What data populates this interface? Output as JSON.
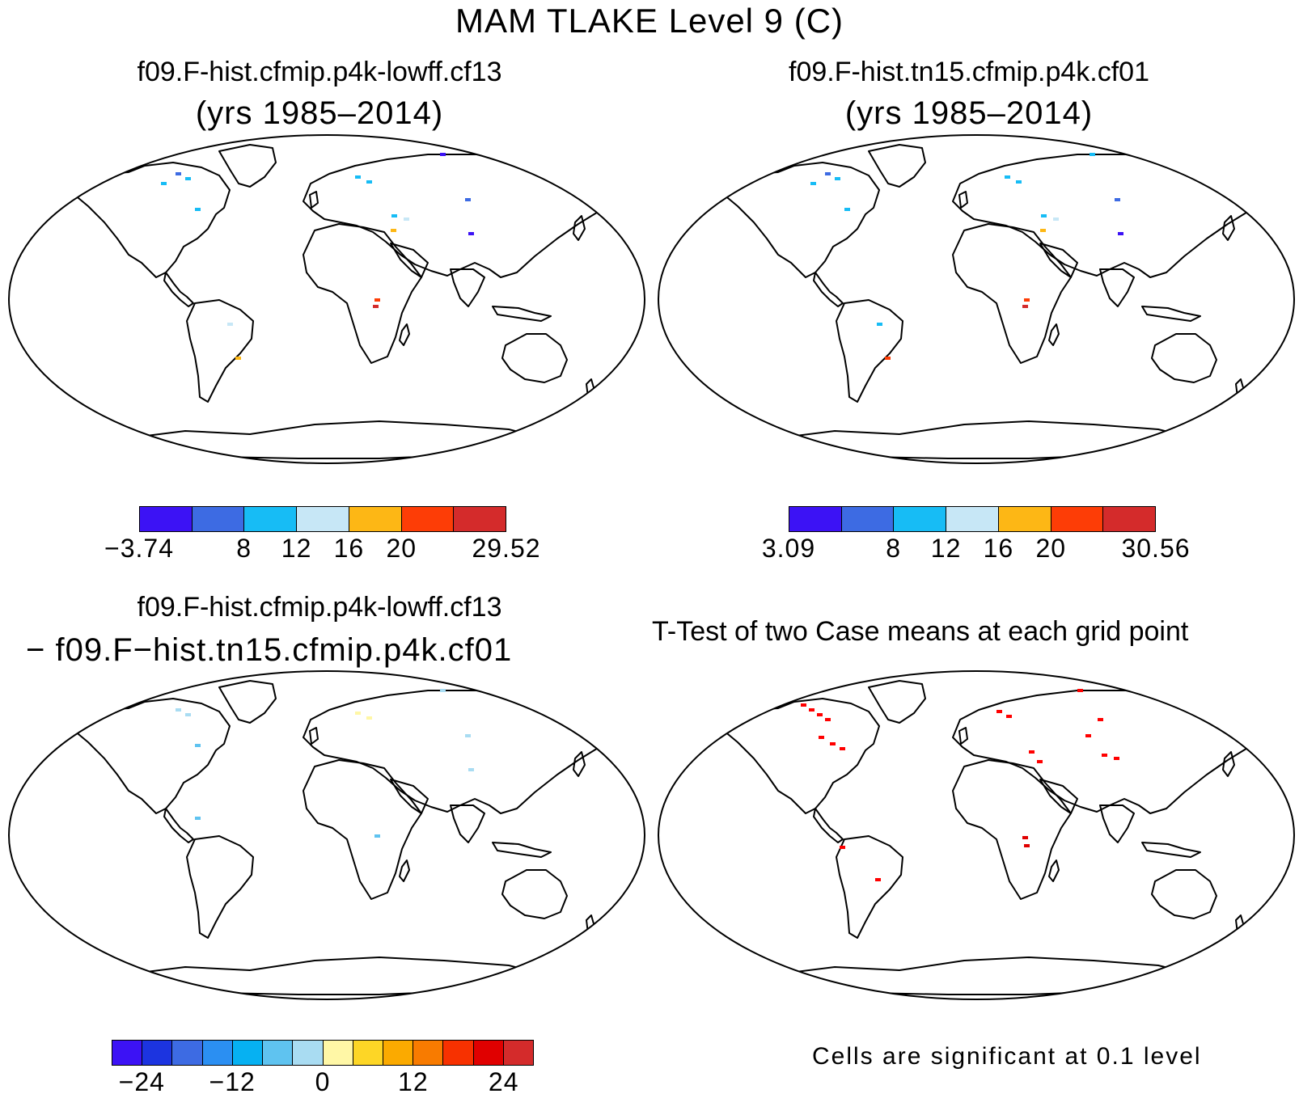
{
  "title": "MAM TLAKE Level 9 (C)",
  "panels": [
    {
      "id": "case1",
      "title": "f09.F-hist.cfmip.p4k-lowff.cf13",
      "subtitle": "(yrs 1985–2014)",
      "colorbar": {
        "colors": [
          "#3c12f5",
          "#3d6be3",
          "#17bcf5",
          "#c7e7f6",
          "#fdb715",
          "#fd3d06",
          "#d42b2b"
        ],
        "ticks": [
          "−3.74",
          "8",
          "12",
          "16",
          "20",
          "29.52"
        ]
      }
    },
    {
      "id": "case2",
      "title": "f09.F-hist.tn15.cfmip.p4k.cf01",
      "subtitle": "(yrs 1985–2014)",
      "colorbar": {
        "colors": [
          "#3c12f5",
          "#3d6be3",
          "#17bcf5",
          "#c7e7f6",
          "#fdb715",
          "#fd3d06",
          "#d42b2b"
        ],
        "ticks": [
          "3.09",
          "8",
          "12",
          "16",
          "20",
          "30.56"
        ]
      }
    },
    {
      "id": "diff",
      "title": "f09.F-hist.cfmip.p4k-lowff.cf13",
      "subtitle": "− f09.F−hist.tn15.cfmip.p4k.cf01",
      "colorbar": {
        "colors": [
          "#3c12f5",
          "#1c34e0",
          "#3d6be3",
          "#2b8ff2",
          "#06b1f2",
          "#5fc3f0",
          "#a9dcf2",
          "#fff7a6",
          "#fdd626",
          "#fbaa00",
          "#f87b00",
          "#f73100",
          "#e00000",
          "#d42b2b"
        ],
        "ticks": [
          "−24",
          "−12",
          "0",
          "12",
          "24"
        ]
      }
    },
    {
      "id": "ttest",
      "title": "T-Test of two Case means at each grid point",
      "subtitle": "",
      "note": "Cells are significant at 0.1 level"
    }
  ],
  "colors": {
    "coast": "#000000",
    "ocean": "#ffffff"
  }
}
